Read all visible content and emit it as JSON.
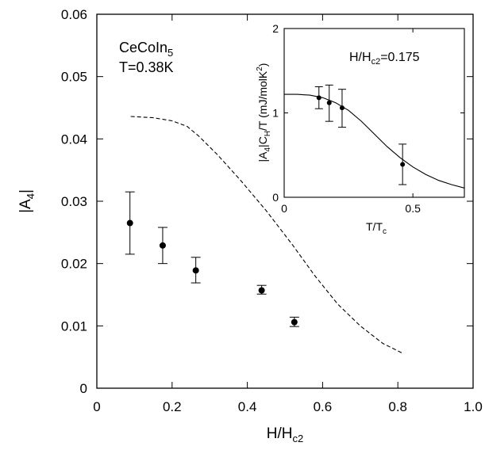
{
  "chart_data": [
    {
      "type": "scatter",
      "xlabel": "H/H",
      "xlabel_sub": "c2",
      "ylabel": "|A",
      "ylabel_sub": "4",
      "ylabel_end": "|",
      "xlim": [
        0,
        1.0
      ],
      "ylim": [
        0,
        0.06
      ],
      "xticks": [
        0,
        0.2,
        0.4,
        0.6,
        0.8,
        1.0
      ],
      "xtick_labels": [
        "0",
        "0.2",
        "0.4",
        "0.6",
        "0.8",
        "1.0"
      ],
      "yticks": [
        0,
        0.01,
        0.02,
        0.03,
        0.04,
        0.05,
        0.06
      ],
      "ytick_labels": [
        "0",
        "0.01",
        "0.02",
        "0.03",
        "0.04",
        "0.05",
        "0.06"
      ],
      "annotation_line1": "CeCoIn",
      "annotation_line1_sub": "5",
      "annotation_line2": "T=0.38K",
      "points": [
        {
          "x": 0.088,
          "y": 0.0265,
          "ylow": 0.0215,
          "yhigh": 0.0315
        },
        {
          "x": 0.175,
          "y": 0.0229,
          "ylow": 0.02,
          "yhigh": 0.0258
        },
        {
          "x": 0.263,
          "y": 0.0189,
          "ylow": 0.0169,
          "yhigh": 0.021
        },
        {
          "x": 0.438,
          "y": 0.0157,
          "ylow": 0.0151,
          "yhigh": 0.0165
        },
        {
          "x": 0.525,
          "y": 0.0106,
          "ylow": 0.0099,
          "yhigh": 0.0114
        }
      ],
      "dashed_curve": [
        {
          "x": 0.09,
          "y": 0.0436
        },
        {
          "x": 0.15,
          "y": 0.0434
        },
        {
          "x": 0.2,
          "y": 0.0429
        },
        {
          "x": 0.24,
          "y": 0.042
        },
        {
          "x": 0.27,
          "y": 0.0405
        },
        {
          "x": 0.32,
          "y": 0.0375
        },
        {
          "x": 0.38,
          "y": 0.0335
        },
        {
          "x": 0.45,
          "y": 0.0285
        },
        {
          "x": 0.52,
          "y": 0.023
        },
        {
          "x": 0.58,
          "y": 0.018
        },
        {
          "x": 0.64,
          "y": 0.0135
        },
        {
          "x": 0.7,
          "y": 0.01
        },
        {
          "x": 0.76,
          "y": 0.0072
        },
        {
          "x": 0.81,
          "y": 0.0057
        }
      ]
    },
    {
      "type": "scatter",
      "xlabel": "T/T",
      "xlabel_sub": "c",
      "ylabel": "|A",
      "ylabel_sub1": "4",
      "ylabel_mid": "|C",
      "ylabel_sub2": "H",
      "ylabel_mid2": "/T (mJ/molK",
      "ylabel_sup": "2",
      "ylabel_end": ")",
      "xlim": [
        0,
        0.7
      ],
      "ylim": [
        0,
        2
      ],
      "xticks": [
        0,
        0.5
      ],
      "xtick_labels": [
        "0",
        "0.5"
      ],
      "yticks": [
        0,
        1,
        2
      ],
      "ytick_labels": [
        "0",
        "1",
        "2"
      ],
      "annotation": "H/H",
      "annotation_sub": "c2",
      "annotation_value": "=0.175",
      "points": [
        {
          "x": 0.135,
          "y": 1.18,
          "ylow": 1.05,
          "yhigh": 1.31
        },
        {
          "x": 0.175,
          "y": 1.12,
          "ylow": 0.9,
          "yhigh": 1.33
        },
        {
          "x": 0.225,
          "y": 1.06,
          "ylow": 0.83,
          "yhigh": 1.28
        },
        {
          "x": 0.46,
          "y": 0.39,
          "ylow": 0.15,
          "yhigh": 0.63
        }
      ],
      "curve": [
        {
          "x": 0.0,
          "y": 1.22
        },
        {
          "x": 0.05,
          "y": 1.22
        },
        {
          "x": 0.1,
          "y": 1.21
        },
        {
          "x": 0.15,
          "y": 1.18
        },
        {
          "x": 0.2,
          "y": 1.12
        },
        {
          "x": 0.25,
          "y": 1.03
        },
        {
          "x": 0.3,
          "y": 0.9
        },
        {
          "x": 0.35,
          "y": 0.75
        },
        {
          "x": 0.4,
          "y": 0.6
        },
        {
          "x": 0.45,
          "y": 0.47
        },
        {
          "x": 0.5,
          "y": 0.36
        },
        {
          "x": 0.55,
          "y": 0.27
        },
        {
          "x": 0.6,
          "y": 0.2
        },
        {
          "x": 0.65,
          "y": 0.15
        },
        {
          "x": 0.7,
          "y": 0.11
        }
      ]
    }
  ]
}
